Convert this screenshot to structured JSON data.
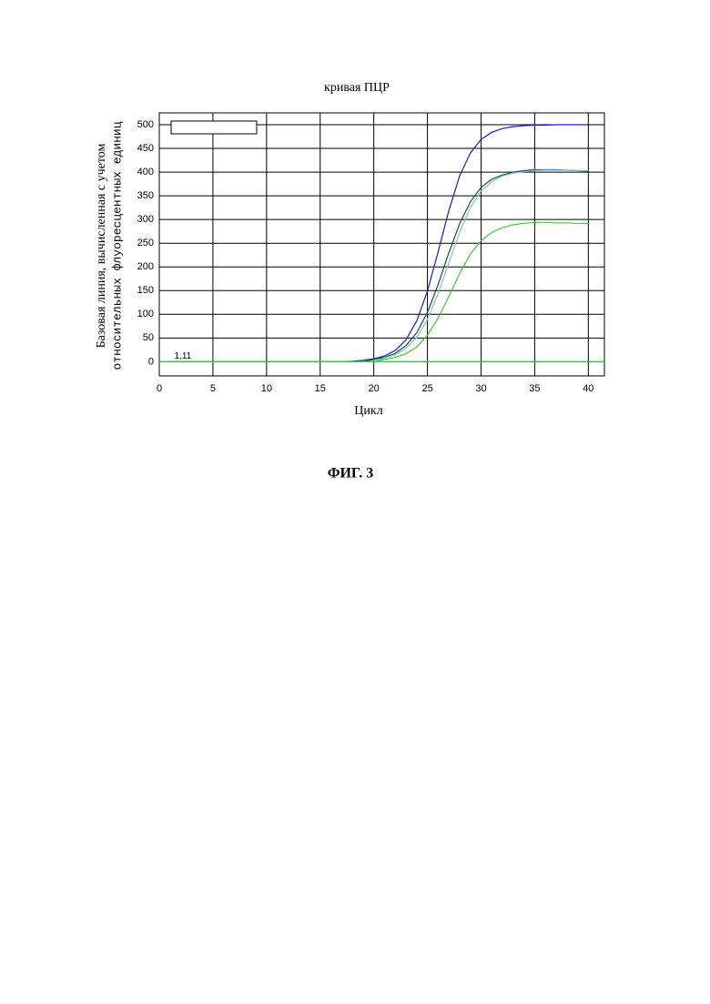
{
  "chart_data": {
    "type": "line",
    "title": "кривая ПЦР",
    "x_label": "Цикл",
    "y_label": [
      "Базовая линия, вычисленная с учетом",
      "относительных флуоресцентных единиц"
    ],
    "x": [
      1,
      2,
      3,
      4,
      5,
      6,
      7,
      8,
      9,
      10,
      11,
      12,
      13,
      14,
      15,
      16,
      17,
      18,
      19,
      20,
      21,
      22,
      23,
      24,
      25,
      26,
      27,
      28,
      29,
      30,
      31,
      32,
      33,
      34,
      35,
      36,
      37,
      38,
      39,
      40
    ],
    "series": [
      {
        "color": "#1a1acc",
        "values": [
          0,
          0,
          0,
          0,
          0,
          0,
          0,
          0,
          0,
          0,
          0,
          0,
          0,
          0,
          0,
          0,
          0,
          1,
          3,
          6,
          12,
          24,
          46,
          86,
          149,
          232,
          319,
          392,
          440,
          469,
          484,
          492,
          496,
          498,
          499,
          499,
          500,
          500,
          500,
          500
        ]
      },
      {
        "color": "#0a5a1e",
        "values": [
          0,
          0,
          0,
          0,
          0,
          0,
          0,
          0,
          0,
          0,
          0,
          0,
          0,
          0,
          0,
          0,
          0,
          0,
          0,
          5,
          9,
          18,
          34,
          61,
          104,
          163,
          230,
          291,
          337,
          368,
          385,
          394,
          400,
          403,
          405,
          405,
          405,
          404,
          403,
          402
        ]
      },
      {
        "color": "#8ab4e8",
        "values": [
          0,
          0,
          0,
          0,
          0,
          0,
          0,
          0,
          0,
          0,
          0,
          0,
          0,
          0,
          0,
          0,
          0,
          0,
          0,
          0,
          8,
          15,
          28,
          51,
          89,
          144,
          209,
          273,
          325,
          360,
          380,
          392,
          398,
          401,
          403,
          404,
          404,
          404,
          403,
          403
        ]
      },
      {
        "color": "#33cc33",
        "values": [
          0,
          0,
          0,
          0,
          0,
          0,
          0,
          0,
          0,
          0,
          0,
          0,
          0,
          0,
          0,
          0,
          0,
          0,
          0,
          0,
          5,
          9,
          17,
          31,
          56,
          92,
          138,
          186,
          227,
          255,
          273,
          283,
          289,
          292,
          294,
          294,
          293,
          293,
          292,
          292
        ]
      }
    ],
    "threshold": {
      "value": 0,
      "color": "#33cc33"
    },
    "annotation": {
      "text": "1,11",
      "x": 2.2,
      "y": 12
    },
    "xlim": [
      0,
      41.5
    ],
    "xticks": [
      0,
      5,
      10,
      15,
      20,
      25,
      30,
      35,
      40
    ],
    "ylim": [
      -30,
      525
    ],
    "yticks": [
      0,
      50,
      100,
      150,
      200,
      250,
      300,
      350,
      400,
      450,
      500
    ],
    "grid": true
  },
  "figure_caption": "ФИГ. 3"
}
